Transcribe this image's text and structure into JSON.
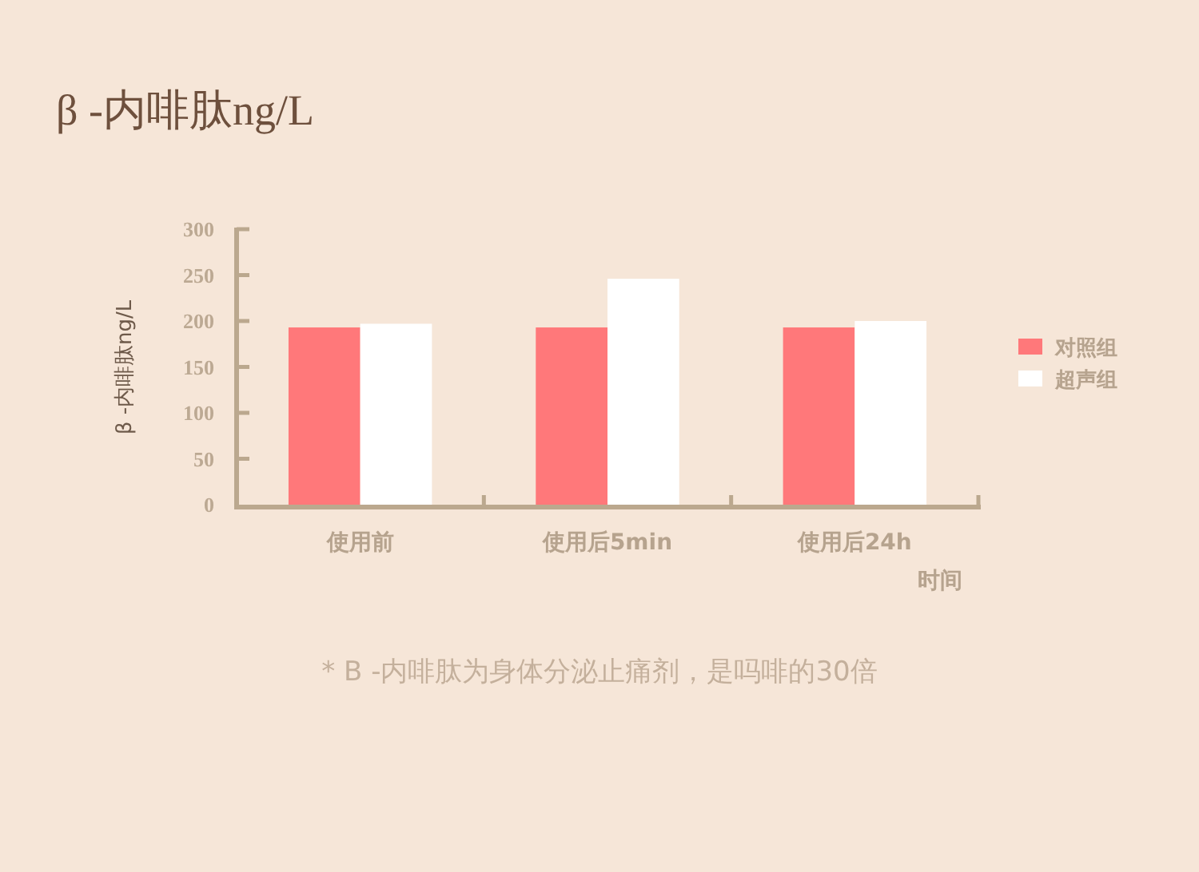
{
  "chart_data": {
    "type": "bar",
    "title": "β -内啡肽ng/L",
    "xlabel": "时间",
    "ylabel": "β -内啡肽ng/L",
    "categories": [
      "使用前",
      "使用后5min",
      "使用后24h"
    ],
    "series": [
      {
        "name": "对照组",
        "color": "#ff787a",
        "values": [
          193,
          193,
          193
        ]
      },
      {
        "name": "超声组",
        "color": "#ffffff",
        "values": [
          197,
          246,
          200
        ]
      }
    ],
    "ylim": [
      0,
      300
    ],
    "yticks": [
      0,
      50,
      100,
      150,
      200,
      250,
      300
    ],
    "legend": "right",
    "annotations": [
      "* B -内啡肽为身体分泌止痛剂，是吗啡的30倍"
    ]
  }
}
